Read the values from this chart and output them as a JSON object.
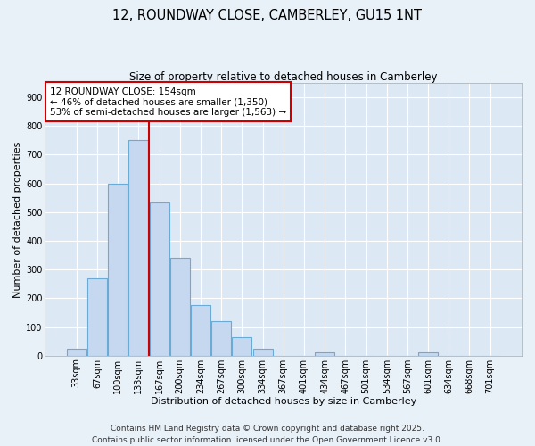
{
  "title_line1": "12, ROUNDWAY CLOSE, CAMBERLEY, GU15 1NT",
  "title_line2": "Size of property relative to detached houses in Camberley",
  "xlabel": "Distribution of detached houses by size in Camberley",
  "ylabel": "Number of detached properties",
  "categories": [
    "33sqm",
    "67sqm",
    "100sqm",
    "133sqm",
    "167sqm",
    "200sqm",
    "234sqm",
    "267sqm",
    "300sqm",
    "334sqm",
    "367sqm",
    "401sqm",
    "434sqm",
    "467sqm",
    "501sqm",
    "534sqm",
    "567sqm",
    "601sqm",
    "634sqm",
    "668sqm",
    "701sqm"
  ],
  "values": [
    25,
    270,
    600,
    750,
    535,
    340,
    175,
    120,
    65,
    25,
    0,
    0,
    10,
    0,
    0,
    0,
    0,
    10,
    0,
    0,
    0
  ],
  "bar_color": "#c5d8f0",
  "bar_edge_color": "#6aaad4",
  "vline_color": "#cc0000",
  "annotation_text_line1": "12 ROUNDWAY CLOSE: 154sqm",
  "annotation_text_line2": "← 46% of detached houses are smaller (1,350)",
  "annotation_text_line3": "53% of semi-detached houses are larger (1,563) →",
  "annotation_box_color": "white",
  "annotation_box_edge_color": "#cc0000",
  "ylim": [
    0,
    950
  ],
  "yticks": [
    0,
    100,
    200,
    300,
    400,
    500,
    600,
    700,
    800,
    900
  ],
  "background_color": "#dde8f5",
  "plot_background_color": "#dde8f5",
  "outer_background_color": "#e8f0f8",
  "footer_line1": "Contains HM Land Registry data © Crown copyright and database right 2025.",
  "footer_line2": "Contains public sector information licensed under the Open Government Licence v3.0.",
  "title_fontsize": 10.5,
  "subtitle_fontsize": 8.5,
  "label_fontsize": 8,
  "tick_fontsize": 7,
  "annotation_fontsize": 7.5,
  "footer_fontsize": 6.5,
  "vline_x_index": 3.5
}
